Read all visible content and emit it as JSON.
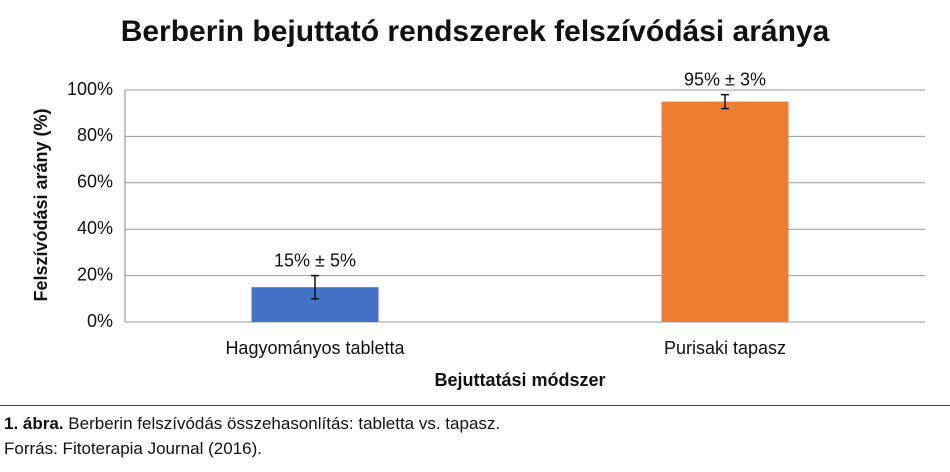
{
  "chart_data": {
    "type": "bar",
    "title": "Berberin bejuttató rendszerek felszívódási aránya",
    "x_label": "Bejuttatási módszer",
    "y_label": "Felszívódási arány (%)",
    "categories": [
      "Hagyományos tabletta",
      "Purisaki tapasz"
    ],
    "values": [
      15,
      95
    ],
    "errors": [
      5,
      3
    ],
    "value_labels": [
      "15% ± 5%",
      "95% ± 3%"
    ],
    "colors": [
      "#4472c4",
      "#ed7d31"
    ],
    "ylim": [
      0,
      100
    ],
    "yticks": [
      {
        "value": 0,
        "label": "0%"
      },
      {
        "value": 20,
        "label": "20%"
      },
      {
        "value": 40,
        "label": "40%"
      },
      {
        "value": 60,
        "label": "60%"
      },
      {
        "value": 80,
        "label": "80%"
      },
      {
        "value": 100,
        "label": "100%"
      }
    ],
    "grid": true
  },
  "caption": {
    "label": "1. ábra.",
    "text": "Berberin felszívódás összehasonlítás: tabletta vs. tapasz.",
    "source": "Forrás: Fitoterapia Journal (2016)."
  }
}
